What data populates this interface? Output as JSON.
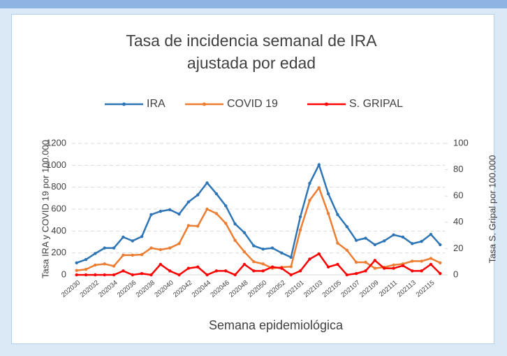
{
  "chart_data": {
    "type": "line",
    "title": "Tasa de incidencia semanal  de IRA ajustada por edad",
    "x_label": "Semana epidemiológica",
    "y_label": "Tasa IRA y COVID 19 por 100.000",
    "y2_label": "Tasa S. Gripal por 100.000",
    "categories": [
      "202030",
      null,
      "202032",
      null,
      "202034",
      null,
      "202036",
      null,
      "202038",
      null,
      "202040",
      null,
      "202042",
      null,
      "202044",
      null,
      "202046",
      null,
      "202048",
      null,
      "202050",
      null,
      "202052",
      null,
      "202101",
      null,
      "202103",
      null,
      "202105",
      null,
      "202107",
      null,
      "202109",
      null,
      "202111",
      null,
      "202113",
      null,
      "202115",
      null
    ],
    "series": [
      {
        "name": "IRA",
        "color": "#2e75b6",
        "values": [
          110,
          140,
          195,
          245,
          245,
          345,
          310,
          350,
          550,
          580,
          595,
          555,
          665,
          730,
          840,
          740,
          630,
          465,
          385,
          265,
          235,
          245,
          200,
          160,
          530,
          835,
          1005,
          740,
          550,
          440,
          315,
          335,
          275,
          310,
          365,
          345,
          285,
          305,
          370,
          275
        ]
      },
      {
        "name": "COVID 19",
        "color": "#ed7d31",
        "values": [
          40,
          50,
          90,
          100,
          80,
          180,
          180,
          185,
          245,
          230,
          245,
          285,
          450,
          445,
          600,
          560,
          470,
          315,
          210,
          120,
          100,
          60,
          70,
          75,
          410,
          680,
          795,
          560,
          290,
          225,
          115,
          115,
          60,
          70,
          90,
          100,
          125,
          125,
          150,
          110
        ]
      },
      {
        "name": "S. GRIPAL",
        "color": "#ff0000",
        "axis": "y2",
        "values": [
          0,
          0,
          0,
          0,
          0,
          3,
          0,
          1,
          0,
          8,
          3,
          0,
          5,
          6,
          0,
          3,
          3,
          0,
          8,
          3,
          3,
          6,
          5,
          0,
          3,
          12,
          16,
          6,
          8,
          0,
          1,
          3,
          11,
          5,
          5,
          7,
          3,
          3,
          8,
          1
        ]
      }
    ],
    "ylim": [
      0,
      1200
    ],
    "yticks": [
      0,
      200,
      400,
      600,
      800,
      1000,
      1200
    ],
    "y2lim": [
      0,
      100
    ],
    "y2ticks": [
      0,
      20,
      40,
      60,
      80,
      100
    ],
    "grid": true,
    "legend": "top"
  }
}
